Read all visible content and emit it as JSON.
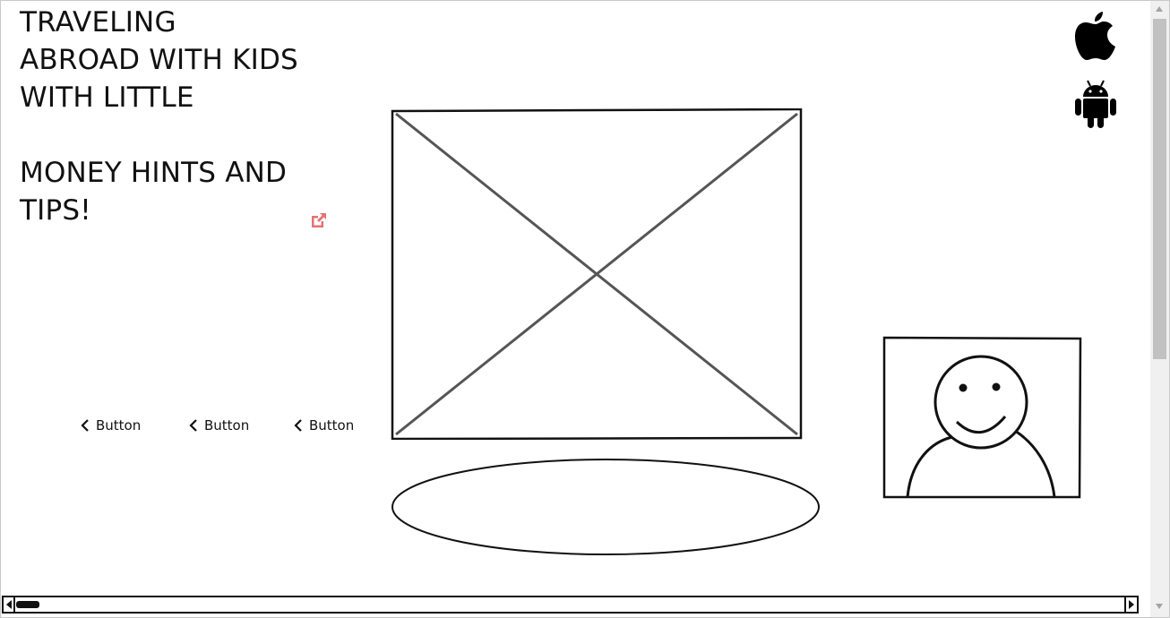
{
  "title": {
    "lines_top": [
      "TRAVELING",
      "ABROAD WITH KIDS",
      "WITH LITTLE"
    ],
    "lines_bottom": [
      "MONEY HINTS AND",
      "TIPS!"
    ]
  },
  "icons": {
    "external_link": "external-link-icon",
    "apple": "apple-logo-icon",
    "android": "android-logo-icon",
    "chevron": "chevron-left-icon"
  },
  "buttons": [
    {
      "label": "Button"
    },
    {
      "label": "Button"
    },
    {
      "label": "Button"
    }
  ],
  "colors": {
    "ink": "#111111",
    "link_accent": "#e57373",
    "placeholder_cross": "#555555"
  }
}
